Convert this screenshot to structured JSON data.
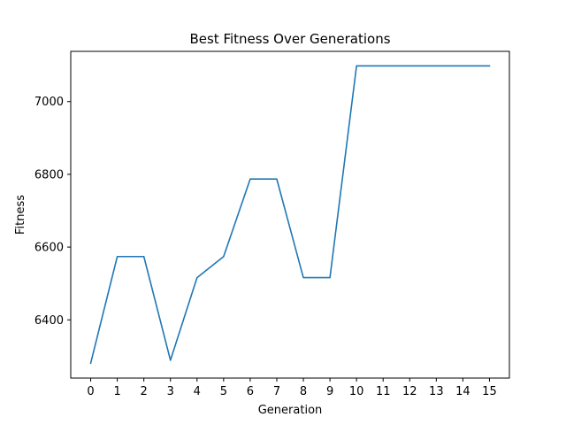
{
  "chart_data": {
    "type": "line",
    "title": "Best Fitness Over Generations",
    "xlabel": "Generation",
    "ylabel": "Fitness",
    "x": [
      0,
      1,
      2,
      3,
      4,
      5,
      6,
      7,
      8,
      9,
      10,
      11,
      12,
      13,
      14,
      15
    ],
    "series": [
      {
        "values": [
          6281,
          6574,
          6574,
          6289,
          6516,
          6574,
          6787,
          6787,
          6516,
          6516,
          7098,
          7098,
          7098,
          7098,
          7098,
          7098
        ],
        "color": "#1f77b4"
      }
    ],
    "xticks": [
      0,
      1,
      2,
      3,
      4,
      5,
      6,
      7,
      8,
      9,
      10,
      11,
      12,
      13,
      14,
      15
    ],
    "xtick_labels": [
      "0",
      "1",
      "2",
      "3",
      "4",
      "5",
      "6",
      "7",
      "8",
      "9",
      "10",
      "11",
      "12",
      "13",
      "14",
      "15"
    ],
    "yticks": [
      6400,
      6600,
      6800,
      7000
    ],
    "ytick_labels": [
      "6400",
      "6600",
      "6800",
      "7000"
    ],
    "xlim": [
      -0.75,
      15.75
    ],
    "ylim": [
      6240,
      7138
    ],
    "grid": false,
    "legend": "none"
  }
}
